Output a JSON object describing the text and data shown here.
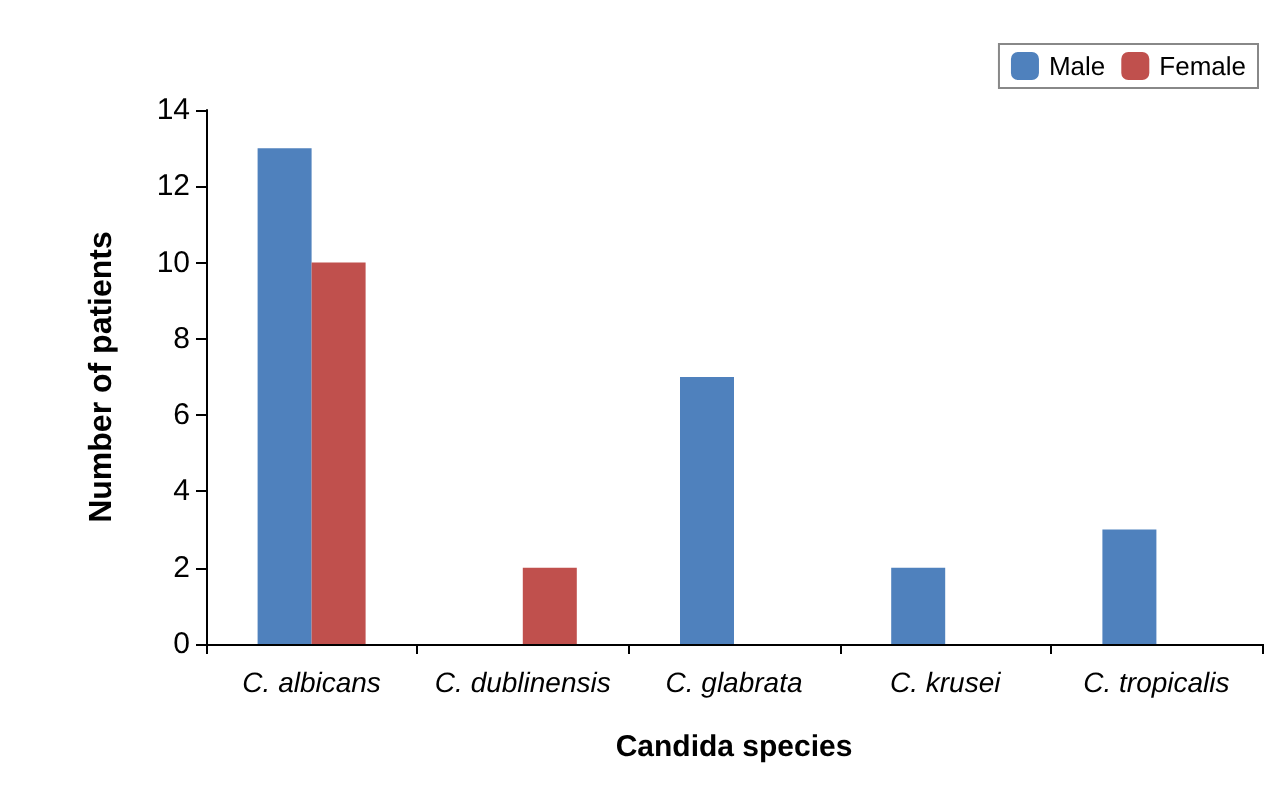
{
  "chart_data": {
    "type": "bar",
    "xlabel": "Candida species",
    "ylabel": "Number of patients",
    "categories": [
      "C. albicans",
      "C. dublinensis",
      "C. glabrata",
      "C. krusei",
      "C. tropicalis"
    ],
    "series": [
      {
        "name": "Male",
        "color": "#4f81bd",
        "values": [
          13,
          null,
          7,
          2,
          3
        ]
      },
      {
        "name": "Female",
        "color": "#c0504d",
        "values": [
          10,
          2,
          null,
          null,
          null
        ]
      }
    ],
    "ylim": [
      0,
      14
    ],
    "yticks": [
      0,
      2,
      4,
      6,
      8,
      10,
      12,
      14
    ],
    "grid": false,
    "legend": "top right"
  }
}
